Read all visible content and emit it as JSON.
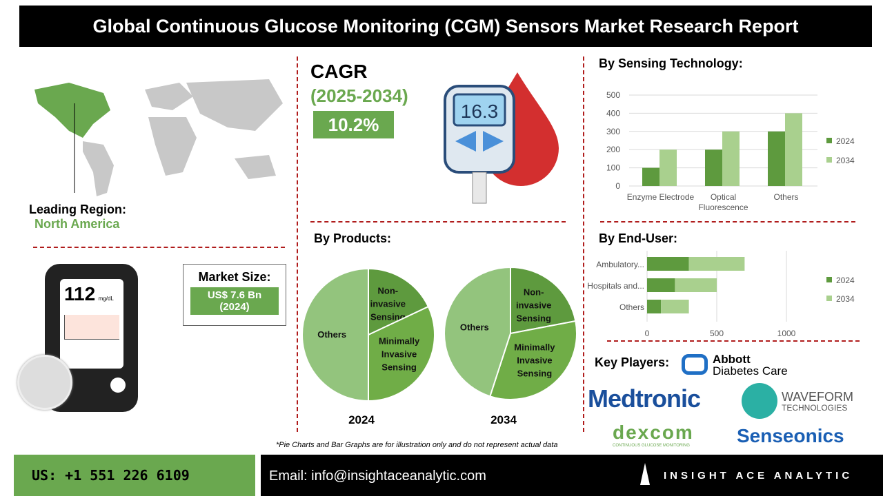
{
  "title": "Global Continuous Glucose Monitoring (CGM) Sensors Market Research Report",
  "region": {
    "label": "Leading Region:",
    "value": "North America"
  },
  "cagr": {
    "label": "CAGR",
    "period": "(2025-2034)",
    "value": "10.2%"
  },
  "device_reading": {
    "value": "112",
    "unit": "mg/dL"
  },
  "meter_reading": "16.3",
  "market_size": {
    "label": "Market Size:",
    "value": "US$ 7.6 Bn",
    "year": "(2024)"
  },
  "sections": {
    "tech": "By Sensing Technology:",
    "products": "By Products:",
    "enduser": "By End-User:",
    "players": "Key Players:"
  },
  "players": [
    "Abbott",
    "Diabetes Care",
    "Medtronic",
    "WAVEFORM",
    "TECHNOLOGIES",
    "dexcom",
    "CONTINUOUS GLUCOSE MONITORING",
    "Senseonics"
  ],
  "disclaimer": "*Pie Charts and Bar Graphs are for illustration only and do not represent actual data",
  "footer": {
    "phone": "US: +1 551 226 6109",
    "email": "Email: info@insightaceanalytic.com",
    "brand": "INSIGHT ACE ANALYTIC"
  },
  "colors": {
    "dark": "#5e9a3e",
    "light": "#a9d08e",
    "mid": "#70ad47",
    "red": "#b01c1c"
  },
  "chart_data": [
    {
      "type": "bar",
      "title": "By Sensing Technology:",
      "categories": [
        "Enzyme Electrode",
        "Optical Fluorescence",
        "Others"
      ],
      "series": [
        {
          "name": "2024",
          "values": [
            100,
            200,
            300
          ]
        },
        {
          "name": "2034",
          "values": [
            200,
            300,
            400
          ]
        }
      ],
      "ylim": [
        0,
        500
      ],
      "yticks": [
        "0",
        "100",
        "200",
        "300",
        "400",
        "500"
      ],
      "legend": "right"
    },
    {
      "type": "pie",
      "title": "2024",
      "slices": [
        {
          "label": "Non-invasive Sensing",
          "value": 18
        },
        {
          "label": "Minimally Invasive Sensing",
          "value": 32
        },
        {
          "label": "Others",
          "value": 50
        }
      ]
    },
    {
      "type": "pie",
      "title": "2034",
      "slices": [
        {
          "label": "Non-invasive Sensing",
          "value": 22
        },
        {
          "label": "Minimally Invasive Sensing",
          "value": 33
        },
        {
          "label": "Others",
          "value": 45
        }
      ]
    },
    {
      "type": "bar",
      "orientation": "horizontal",
      "stacked": true,
      "title": "By End-User:",
      "categories": [
        "Ambulatory...",
        "Hospitals and...",
        "Others"
      ],
      "series": [
        {
          "name": "2024",
          "values": [
            300,
            200,
            100
          ]
        },
        {
          "name": "2034",
          "values": [
            400,
            300,
            200
          ]
        }
      ],
      "xlim": [
        0,
        1000
      ],
      "xticks": [
        "0",
        "500",
        "1000"
      ],
      "legend": "right"
    }
  ]
}
